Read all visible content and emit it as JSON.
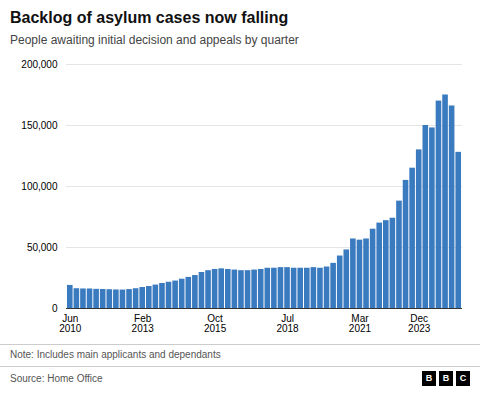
{
  "chart_data": {
    "type": "bar",
    "title": "Backlog of asylum cases now falling",
    "subtitle": "People awaiting initial decision and appeals by quarter",
    "annotations": [
      "Note: Includes main applicants and dependants",
      "Source: Home Office",
      "BBC"
    ],
    "categories": [
      "Jun\n2010",
      null,
      null,
      null,
      null,
      null,
      null,
      null,
      null,
      null,
      null,
      "Feb\n2013",
      null,
      null,
      null,
      null,
      null,
      null,
      null,
      null,
      null,
      null,
      "Oct\n2015",
      null,
      null,
      null,
      null,
      null,
      null,
      null,
      null,
      null,
      null,
      "Jul\n2018",
      null,
      null,
      null,
      null,
      null,
      null,
      null,
      null,
      null,
      null,
      "Mar\n2021",
      null,
      null,
      null,
      null,
      null,
      null,
      null,
      null,
      "Dec\n2023",
      null,
      null,
      null,
      null,
      null,
      null
    ],
    "values": [
      18900,
      16200,
      16000,
      16000,
      15700,
      15600,
      15400,
      15200,
      15100,
      15500,
      16200,
      17200,
      18000,
      19200,
      20500,
      21500,
      22500,
      24000,
      25500,
      27000,
      29500,
      31000,
      32000,
      32500,
      32000,
      31500,
      31000,
      31000,
      31500,
      32000,
      33000,
      33000,
      33500,
      33500,
      33000,
      33000,
      33000,
      33500,
      33000,
      34000,
      37000,
      43000,
      48000,
      57000,
      56000,
      57000,
      65000,
      70000,
      72000,
      74000,
      88000,
      105000,
      115000,
      130000,
      150000,
      148000,
      170000,
      175000,
      166000,
      128000
    ],
    "color": "#3a7abf",
    "ylim": [
      0,
      200000
    ],
    "yticks": [
      0,
      {
        "value": 50000,
        "label": "50,000"
      },
      {
        "value": 100000,
        "label": "100,000"
      },
      {
        "value": 150000,
        "label": "150,000"
      },
      {
        "value": 200000,
        "label": "200,000"
      }
    ],
    "grid": true
  }
}
